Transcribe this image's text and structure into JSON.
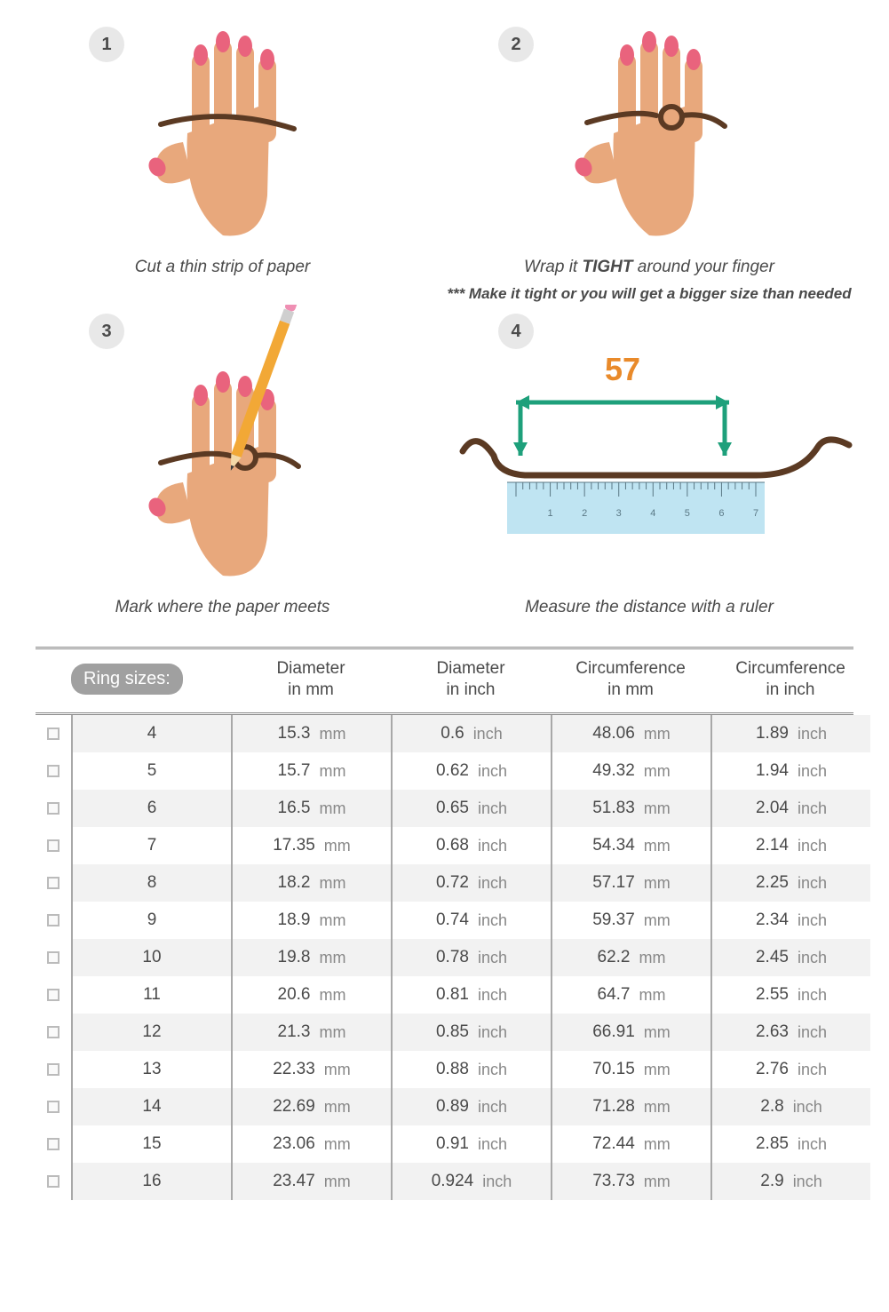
{
  "colors": {
    "skin": "#e8a87c",
    "nail": "#e9637d",
    "strip": "#5b3a23",
    "pencil_body": "#f2a836",
    "pencil_eraser": "#ef8fb3",
    "pencil_metal": "#cfcfcf",
    "pencil_tip": "#3a3a3a",
    "arrow": "#1ea07b",
    "measure_num": "#e98a2a",
    "ruler_bg": "#bfe4f2",
    "ruler_line": "#5a7885",
    "step_circle_bg": "#e8e8e8",
    "step_circle_fg": "#4a4a4a",
    "text": "#4a4a4a",
    "header_pill_bg": "#a0a0a0",
    "header_pill_fg": "#ffffff",
    "row_alt_bg": "#f2f2f2",
    "row_bg": "#ffffff",
    "col_sep": "#a8a8a8",
    "checkbox_border": "#bbbbbb"
  },
  "steps": [
    {
      "n": "1",
      "caption": "Cut a thin strip of paper"
    },
    {
      "n": "2",
      "caption": "Wrap it TIGHT around your finger",
      "sub": "*** Make it tight or you will get a bigger size than needed"
    },
    {
      "n": "3",
      "caption": "Mark where the paper meets"
    },
    {
      "n": "4",
      "caption": "Measure the distance with a ruler",
      "measurement": "57",
      "ruler_labels": [
        "1",
        "2",
        "3",
        "4",
        "5",
        "6",
        "7"
      ]
    }
  ],
  "table": {
    "title": "Ring sizes:",
    "columns": [
      {
        "line1": "Diameter",
        "line2": "in mm",
        "unit": "mm"
      },
      {
        "line1": "Diameter",
        "line2": "in inch",
        "unit": "inch"
      },
      {
        "line1": "Circumference",
        "line2": "in mm",
        "unit": "mm"
      },
      {
        "line1": "Circumference",
        "line2": "in inch",
        "unit": "inch"
      }
    ],
    "rows": [
      {
        "size": "4",
        "vals": [
          "15.3",
          "0.6",
          "48.06",
          "1.89"
        ]
      },
      {
        "size": "5",
        "vals": [
          "15.7",
          "0.62",
          "49.32",
          "1.94"
        ]
      },
      {
        "size": "6",
        "vals": [
          "16.5",
          "0.65",
          "51.83",
          "2.04"
        ]
      },
      {
        "size": "7",
        "vals": [
          "17.35",
          "0.68",
          "54.34",
          "2.14"
        ]
      },
      {
        "size": "8",
        "vals": [
          "18.2",
          "0.72",
          "57.17",
          "2.25"
        ]
      },
      {
        "size": "9",
        "vals": [
          "18.9",
          "0.74",
          "59.37",
          "2.34"
        ]
      },
      {
        "size": "10",
        "vals": [
          "19.8",
          "0.78",
          "62.2",
          "2.45"
        ]
      },
      {
        "size": "11",
        "vals": [
          "20.6",
          "0.81",
          "64.7",
          "2.55"
        ]
      },
      {
        "size": "12",
        "vals": [
          "21.3",
          "0.85",
          "66.91",
          "2.63"
        ]
      },
      {
        "size": "13",
        "vals": [
          "22.33",
          "0.88",
          "70.15",
          "2.76"
        ]
      },
      {
        "size": "14",
        "vals": [
          "22.69",
          "0.89",
          "71.28",
          "2.8"
        ]
      },
      {
        "size": "15",
        "vals": [
          "23.06",
          "0.91",
          "72.44",
          "2.85"
        ]
      },
      {
        "size": "16",
        "vals": [
          "23.47",
          "0.924",
          "73.73",
          "2.9"
        ]
      }
    ]
  }
}
